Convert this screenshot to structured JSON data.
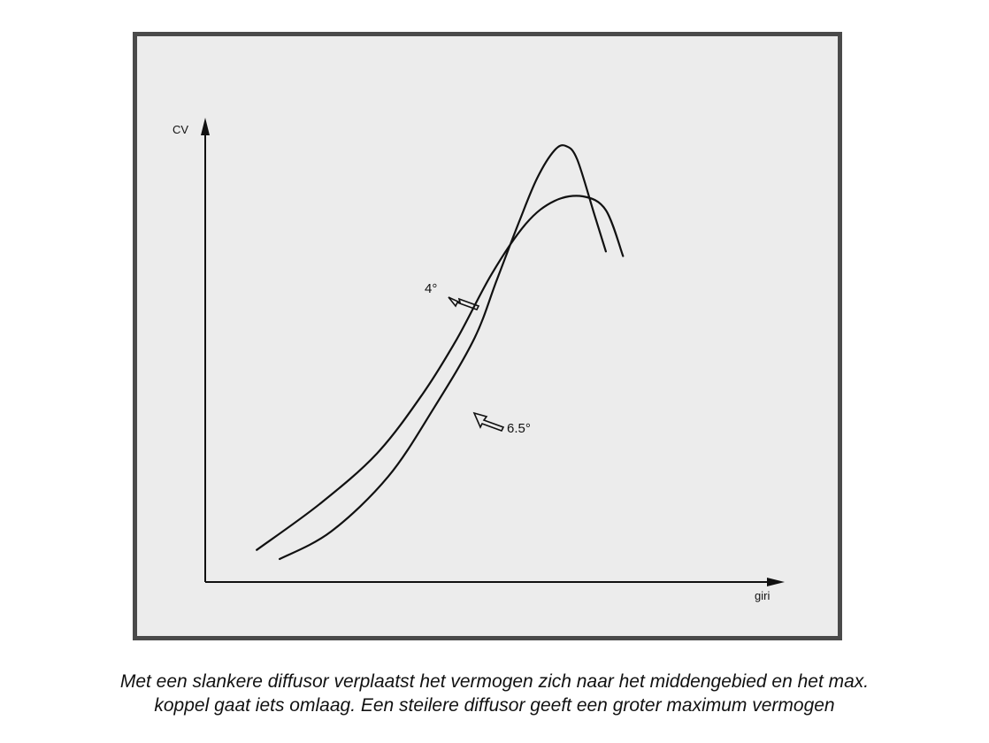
{
  "chart_data": {
    "type": "line",
    "title": "",
    "xlabel": "giri",
    "ylabel": "CV",
    "x_ticks": [],
    "y_ticks": [],
    "grid": false,
    "legend": "none (series labelled inline with arrows)",
    "xlim": [
      0,
      100
    ],
    "ylim": [
      0,
      100
    ],
    "series": [
      {
        "name": "4°",
        "color": "#111111",
        "x": [
          9,
          20,
          30,
          38,
          44,
          50,
          56,
          61,
          66,
          70,
          73
        ],
        "y": [
          7,
          17,
          28,
          41,
          53,
          67,
          78,
          83,
          84,
          81,
          71
        ]
      },
      {
        "name": "6.5°",
        "color": "#111111",
        "x": [
          13,
          22,
          32,
          40,
          47,
          51,
          55,
          58,
          61,
          63,
          65,
          68,
          70
        ],
        "y": [
          5,
          11,
          23,
          38,
          53,
          66,
          79,
          88,
          94,
          95,
          92,
          80,
          72
        ]
      }
    ]
  },
  "caption": {
    "line1": "Met een slankere diffusor verplaatst het vermogen zich naar het middengebied en het max.",
    "line2": "koppel gaat iets omlaag. Een steilere diffusor geeft een groter maximum vermogen"
  }
}
